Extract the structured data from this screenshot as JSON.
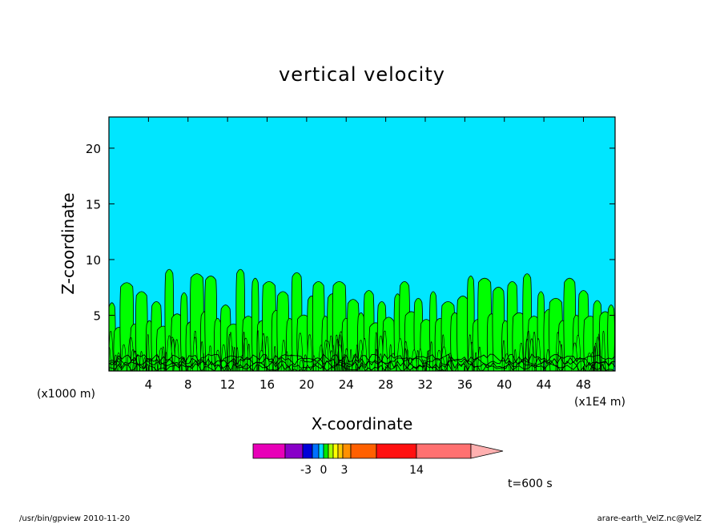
{
  "chart_data": {
    "type": "heatmap",
    "title": "vertical velocity",
    "xlabel": "X-coordinate",
    "ylabel": "Z-coordinate",
    "x_unit_left": "(x1000 m)",
    "x_unit_right": "(x1E4 m)",
    "xlim": [
      0,
      51.2
    ],
    "ylim": [
      0,
      22.8
    ],
    "x_ticks": [
      4,
      8,
      12,
      16,
      20,
      24,
      28,
      32,
      36,
      40,
      44,
      48
    ],
    "x_tick_labels": [
      "4",
      "8",
      "12",
      "16",
      "20",
      "24",
      "28",
      "32",
      "36",
      "40",
      "44",
      "48"
    ],
    "y_ticks": [
      5,
      10,
      15,
      20
    ],
    "y_tick_labels": [
      "5",
      "10",
      "15",
      "20"
    ],
    "colorbar": {
      "labels": [
        {
          "text": "-3",
          "value": -3
        },
        {
          "text": "0",
          "value": 0
        },
        {
          "text": "3",
          "value": 3
        },
        {
          "text": "14",
          "value": 14
        }
      ],
      "colors": [
        "#e800b8",
        "#8800c8",
        "#0000d8",
        "#0070ff",
        "#00d8ff",
        "#00e800",
        "#a8ff00",
        "#ffff00",
        "#ffc800",
        "#ff9000",
        "#ff6000",
        "#ff1010",
        "#ff7070",
        "#ffb0b0"
      ]
    },
    "background_color": "#00e6ff",
    "updraft_color": "#00ff00",
    "plumes": [
      {
        "x": 0.3,
        "top": 6.2
      },
      {
        "x": 1.0,
        "top": 4.0
      },
      {
        "x": 1.8,
        "top": 8.0
      },
      {
        "x": 2.6,
        "top": 4.3
      },
      {
        "x": 3.3,
        "top": 7.2
      },
      {
        "x": 4.1,
        "top": 4.6
      },
      {
        "x": 4.8,
        "top": 6.3
      },
      {
        "x": 5.5,
        "top": 4.1
      },
      {
        "x": 6.1,
        "top": 9.2
      },
      {
        "x": 6.9,
        "top": 5.2
      },
      {
        "x": 7.6,
        "top": 7.1
      },
      {
        "x": 8.3,
        "top": 4.5
      },
      {
        "x": 8.9,
        "top": 8.8
      },
      {
        "x": 9.7,
        "top": 5.4
      },
      {
        "x": 10.3,
        "top": 8.6
      },
      {
        "x": 11.0,
        "top": 4.8
      },
      {
        "x": 11.8,
        "top": 6.0
      },
      {
        "x": 12.6,
        "top": 4.3
      },
      {
        "x": 13.3,
        "top": 9.2
      },
      {
        "x": 14.1,
        "top": 5.0
      },
      {
        "x": 14.8,
        "top": 8.4
      },
      {
        "x": 15.5,
        "top": 4.6
      },
      {
        "x": 16.2,
        "top": 8.1
      },
      {
        "x": 16.9,
        "top": 5.5
      },
      {
        "x": 17.6,
        "top": 7.2
      },
      {
        "x": 18.3,
        "top": 4.8
      },
      {
        "x": 19.0,
        "top": 8.9
      },
      {
        "x": 19.7,
        "top": 5.1
      },
      {
        "x": 20.5,
        "top": 6.8
      },
      {
        "x": 21.2,
        "top": 8.1
      },
      {
        "x": 21.9,
        "top": 5.0
      },
      {
        "x": 22.6,
        "top": 7.0
      },
      {
        "x": 23.3,
        "top": 8.1
      },
      {
        "x": 24.0,
        "top": 4.8
      },
      {
        "x": 24.7,
        "top": 6.5
      },
      {
        "x": 25.5,
        "top": 5.3
      },
      {
        "x": 26.3,
        "top": 7.3
      },
      {
        "x": 27.0,
        "top": 4.4
      },
      {
        "x": 27.6,
        "top": 6.3
      },
      {
        "x": 28.3,
        "top": 4.9
      },
      {
        "x": 29.2,
        "top": 7.0
      },
      {
        "x": 29.9,
        "top": 8.1
      },
      {
        "x": 30.6,
        "top": 5.4
      },
      {
        "x": 31.3,
        "top": 6.6
      },
      {
        "x": 32.1,
        "top": 4.7
      },
      {
        "x": 32.8,
        "top": 7.2
      },
      {
        "x": 33.5,
        "top": 4.8
      },
      {
        "x": 34.3,
        "top": 6.3
      },
      {
        "x": 35.0,
        "top": 5.3
      },
      {
        "x": 35.8,
        "top": 6.8
      },
      {
        "x": 36.6,
        "top": 8.6
      },
      {
        "x": 37.3,
        "top": 4.7
      },
      {
        "x": 38.0,
        "top": 8.4
      },
      {
        "x": 38.7,
        "top": 5.2
      },
      {
        "x": 39.4,
        "top": 7.6
      },
      {
        "x": 40.1,
        "top": 4.6
      },
      {
        "x": 40.8,
        "top": 8.1
      },
      {
        "x": 41.5,
        "top": 5.3
      },
      {
        "x": 42.3,
        "top": 8.8
      },
      {
        "x": 43.0,
        "top": 5.0
      },
      {
        "x": 43.7,
        "top": 7.2
      },
      {
        "x": 44.5,
        "top": 5.6
      },
      {
        "x": 45.2,
        "top": 6.6
      },
      {
        "x": 45.9,
        "top": 4.6
      },
      {
        "x": 46.6,
        "top": 8.4
      },
      {
        "x": 47.3,
        "top": 5.1
      },
      {
        "x": 48.0,
        "top": 7.3
      },
      {
        "x": 48.7,
        "top": 5.0
      },
      {
        "x": 49.4,
        "top": 6.4
      },
      {
        "x": 50.2,
        "top": 5.4
      },
      {
        "x": 50.8,
        "top": 6.0
      }
    ]
  },
  "annotations": {
    "time": "t=600 s",
    "footer_left": "/usr/bin/gpview  2010-11-20",
    "footer_right": "arare-earth_VelZ.nc@VelZ"
  }
}
